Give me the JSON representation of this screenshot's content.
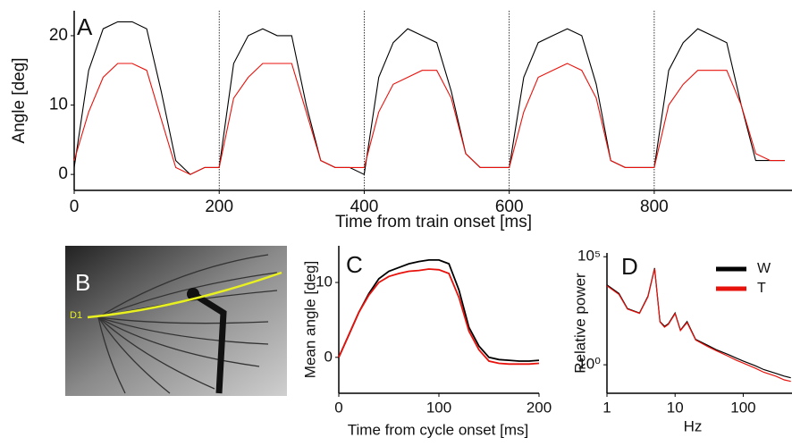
{
  "chart_data": [
    {
      "type": "line",
      "panel_label": "A",
      "x_label": "Time from train onset [ms]",
      "y_label": "Angle [deg]",
      "x": [
        0,
        20,
        40,
        60,
        80,
        100,
        120,
        140,
        160,
        180,
        200,
        220,
        240,
        260,
        280,
        300,
        320,
        340,
        360,
        380,
        400,
        420,
        440,
        460,
        480,
        500,
        520,
        540,
        560,
        580,
        600,
        620,
        640,
        660,
        680,
        700,
        720,
        740,
        760,
        780,
        800,
        820,
        840,
        860,
        880,
        900,
        920,
        940,
        960,
        980
      ],
      "series": [
        {
          "name": "W",
          "color": "#000000",
          "values": [
            1,
            15,
            21,
            22,
            22,
            21,
            12,
            2,
            0,
            1,
            1,
            16,
            20,
            21,
            20,
            20,
            10,
            2,
            1,
            1,
            0,
            14,
            19,
            21,
            20,
            19,
            12,
            3,
            1,
            1,
            1,
            14,
            19,
            20,
            21,
            20,
            13,
            2,
            1,
            1,
            1,
            15,
            19,
            21,
            20,
            19,
            10,
            2,
            2,
            2
          ]
        },
        {
          "name": "T",
          "color": "#e8120c",
          "values": [
            2,
            9,
            14,
            16,
            16,
            15,
            8,
            1,
            0,
            1,
            1,
            11,
            14,
            16,
            16,
            16,
            9,
            2,
            1,
            1,
            1,
            9,
            13,
            14,
            15,
            15,
            11,
            3,
            1,
            1,
            1,
            9,
            14,
            15,
            16,
            15,
            11,
            2,
            1,
            1,
            1,
            10,
            13,
            15,
            15,
            15,
            10,
            3,
            2,
            2
          ]
        }
      ],
      "xlim": [
        0,
        990
      ],
      "ylim": [
        -2.3,
        23.6
      ],
      "xticks": [
        0,
        200,
        400,
        600,
        800
      ],
      "yticks": [
        0,
        10,
        20
      ],
      "cycle_boundaries": [
        200,
        400,
        600,
        800
      ]
    },
    {
      "type": "line",
      "panel_label": "C",
      "x_label": "Time from cycle onset [ms]",
      "y_label": "Mean angle [deg]",
      "x": [
        0,
        10,
        20,
        30,
        40,
        50,
        60,
        70,
        80,
        90,
        100,
        110,
        120,
        130,
        140,
        150,
        160,
        170,
        180,
        190,
        200
      ],
      "series": [
        {
          "name": "W",
          "color": "#000000",
          "values": [
            0,
            3,
            6,
            8.5,
            10.5,
            11.5,
            12,
            12.5,
            12.8,
            13,
            13,
            12.5,
            9,
            4,
            1.5,
            0,
            -0.3,
            -0.4,
            -0.5,
            -0.5,
            -0.4
          ]
        },
        {
          "name": "T",
          "color": "#e8120c",
          "values": [
            0,
            3,
            6,
            8.3,
            10,
            10.8,
            11.2,
            11.5,
            11.6,
            11.8,
            11.7,
            11.2,
            8,
            3.5,
            1,
            -0.5,
            -0.8,
            -0.9,
            -0.9,
            -0.9,
            -0.8
          ]
        }
      ],
      "xlim": [
        0,
        200
      ],
      "ylim": [
        -4.8,
        14.9
      ],
      "xticks": [
        0,
        100,
        200
      ],
      "yticks": [
        0,
        10
      ]
    },
    {
      "type": "line",
      "panel_label": "D",
      "x_label": "Hz",
      "y_label": "Relative power",
      "log_x": true,
      "log_y": true,
      "legend": "top-right",
      "x": [
        1,
        1.5,
        2,
        3,
        4,
        5,
        6,
        7,
        8,
        10,
        12,
        15,
        20,
        30,
        40,
        60,
        80,
        100,
        150,
        200,
        300,
        400,
        500
      ],
      "series": [
        {
          "name": "W",
          "color": "#000000",
          "values": [
            5000,
            2000,
            400,
            250,
            1500,
            30000,
            100,
            60,
            80,
            250,
            40,
            100,
            15,
            8,
            5,
            3,
            2,
            1.5,
            0.9,
            0.6,
            0.4,
            0.3,
            0.25
          ]
        },
        {
          "name": "T",
          "color": "#e8120c",
          "values": [
            4500,
            1800,
            380,
            240,
            1400,
            28000,
            95,
            55,
            75,
            230,
            38,
            90,
            14,
            7,
            4.5,
            2.5,
            1.6,
            1.2,
            0.7,
            0.45,
            0.3,
            0.2,
            0.17
          ]
        }
      ],
      "xlim": [
        1,
        520
      ],
      "ylim": [
        0.048,
        150000
      ],
      "xticks": [
        1,
        10,
        100
      ],
      "yticks": [
        {
          "value": 1,
          "label": "10⁰"
        },
        {
          "value": 100000,
          "label": "10⁵"
        }
      ]
    }
  ],
  "photo": {
    "panel_label": "B",
    "annotation": "D1"
  }
}
